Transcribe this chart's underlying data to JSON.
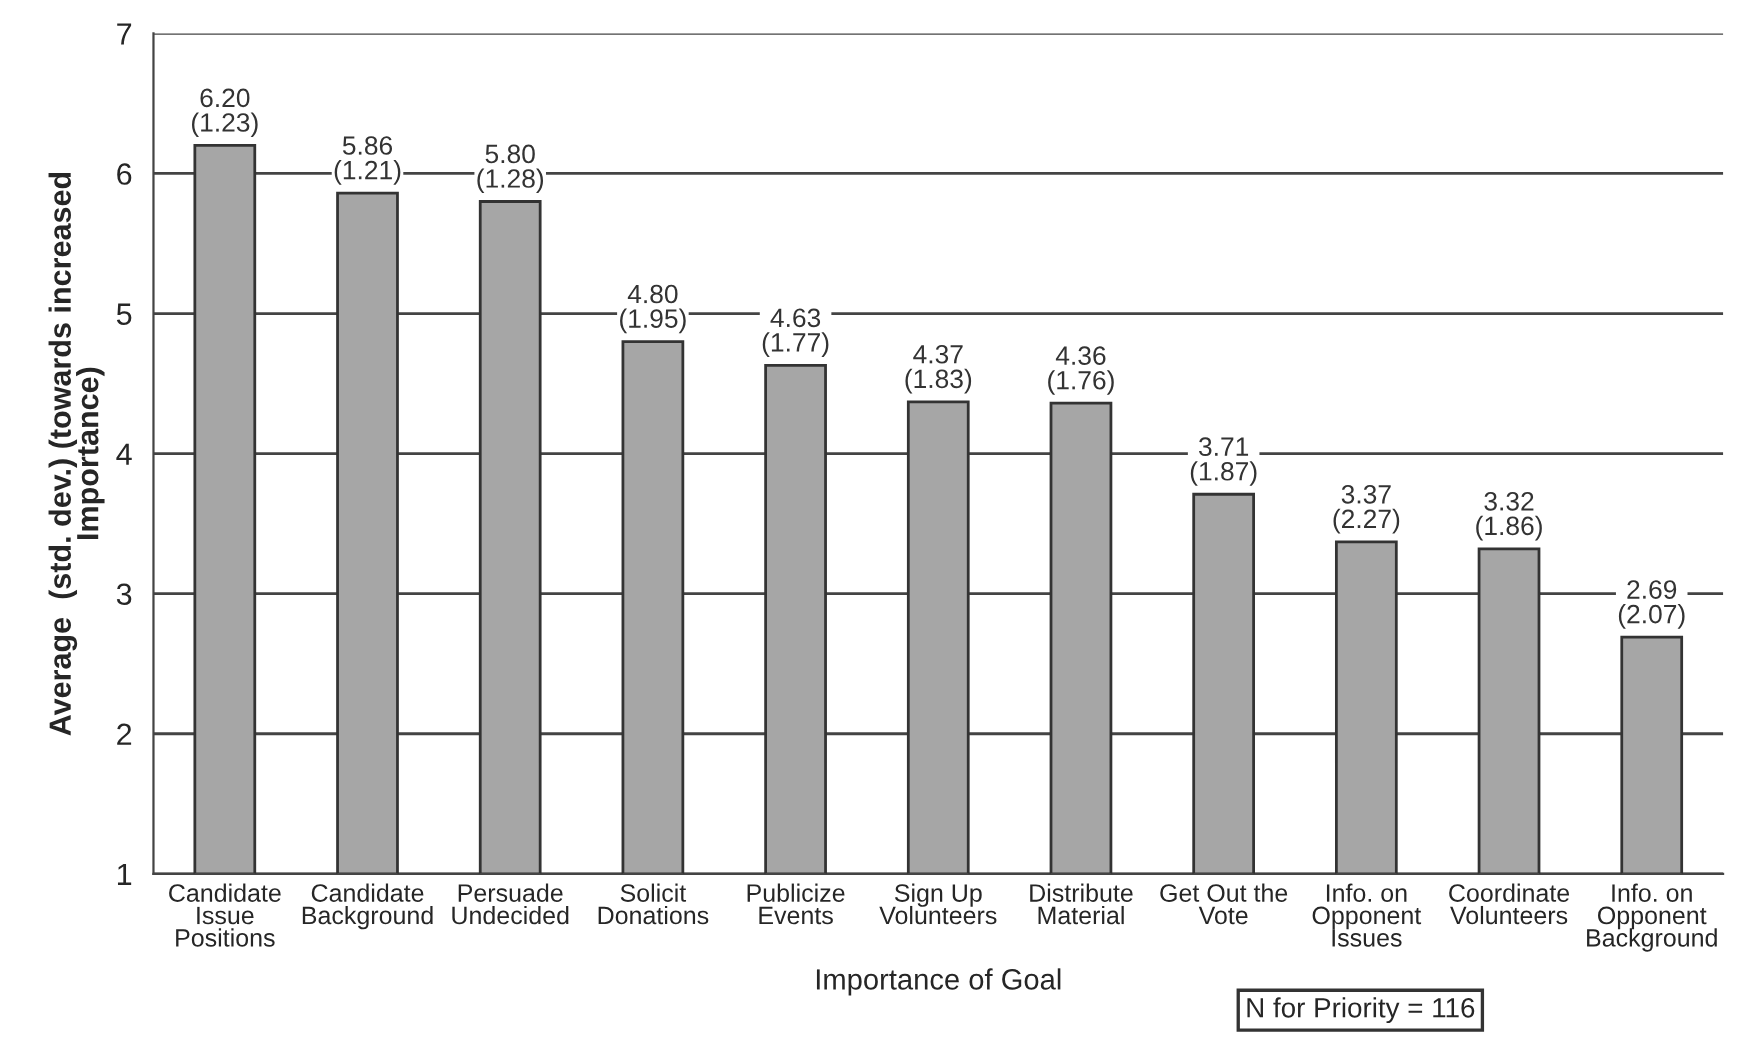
{
  "chart_data": {
    "type": "bar",
    "xlabel": "Importance of Goal",
    "ylabel": "Average  (std. dev.) (towards increased\nImportance)",
    "categories": [
      "Candidate\nIssue\nPositions",
      "Candidate\nBackground",
      "Persuade\nUndecided",
      "Solicit\nDonations",
      "Publicize\nEvents",
      "Sign Up\nVolunteers",
      "Distribute\nMaterial",
      "Get Out the\nVote",
      "Info. on\nOpponent\nIssues",
      "Coordinate\nVolunteers",
      "Info. on\nOpponent\nBackground"
    ],
    "values": [
      6.2,
      5.86,
      5.8,
      4.8,
      4.63,
      4.37,
      4.36,
      3.71,
      3.37,
      3.32,
      2.69
    ],
    "value_labels": [
      "6.20\n(1.23)",
      "5.86\n(1.21)",
      "5.80\n(1.28)",
      "4.80\n(1.95)",
      "4.63\n(1.77)",
      "4.37\n(1.83)",
      "4.36\n(1.76)",
      "3.71\n(1.87)",
      "3.37\n(2.27)",
      "3.32\n(1.86)",
      "2.69\n(2.07)"
    ],
    "color": "#a6a6a6",
    "ylim": [
      1,
      7
    ],
    "yticks": [
      1,
      2,
      3,
      4,
      5,
      6,
      7
    ],
    "grid": "y",
    "annotations": [
      "N for Priority = 116"
    ]
  }
}
